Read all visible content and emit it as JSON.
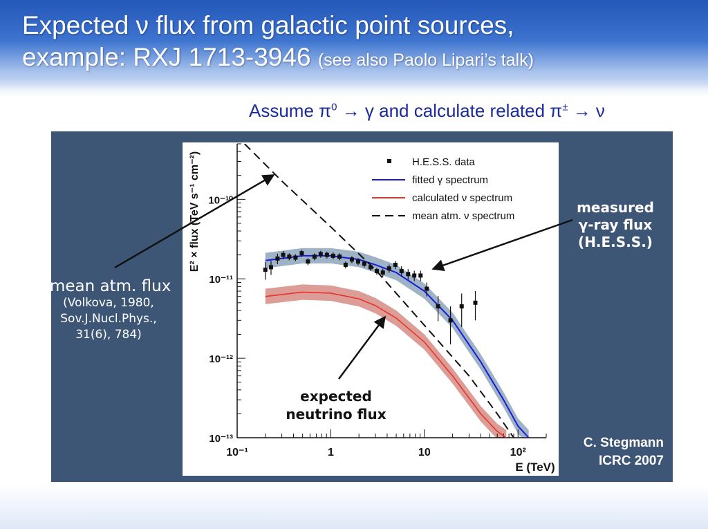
{
  "slide": {
    "title_line1": "Expected ν flux from galactic point sources,",
    "title_line2": "example: RXJ 1713-3946",
    "title_note": "(see also Paolo Lipari’s talk)",
    "subtitle_part1": "Assume π",
    "subtitle_sup1": "0",
    "subtitle_part2": " → γ and calculate related π",
    "subtitle_sup2": "±",
    "subtitle_part3": " → ν",
    "credit_line1": "C. Stegmann",
    "credit_line2": "ICRC 2007"
  },
  "annotations": {
    "mean_title": "mean atm. flux",
    "mean_ref1": "(Volkova, 1980,",
    "mean_ref2": "Sov.J.Nucl.Phys.,",
    "mean_ref3": "31(6), 784)",
    "measured1": "measured",
    "measured2": "γ-ray flux",
    "measured3": "(H.E.S.S.)",
    "expected1": "expected",
    "expected2": "neutrino flux"
  },
  "colors": {
    "panel": "#3d5676",
    "gamma_line": "#1a1ad6",
    "gamma_band": "#9fb3c7",
    "nu_line": "#e8322a",
    "nu_band": "#d9928c",
    "atm_line": "#111111"
  },
  "chart_data": {
    "type": "line",
    "xlabel": "E (TeV)",
    "ylabel": "E² × flux (TeV s⁻¹ cm⁻²)",
    "xscale": "log",
    "yscale": "log",
    "xlim": [
      0.1,
      200
    ],
    "ylim": [
      1e-13,
      5e-10
    ],
    "x_tick_labels": [
      "10⁻¹",
      "1",
      "10",
      "10²"
    ],
    "y_tick_labels": [
      "10⁻¹³",
      "10⁻¹²",
      "10⁻¹¹",
      "10⁻¹⁰"
    ],
    "legend_position": "top-right",
    "legend": [
      {
        "label": "H.E.S.S. data",
        "style": "marker"
      },
      {
        "label": "fitted γ spectrum",
        "style": "blue-line"
      },
      {
        "label": "calculated ν spectrum",
        "style": "red-line"
      },
      {
        "label": "mean atm. ν spectrum",
        "style": "black-dashed"
      }
    ],
    "series": [
      {
        "name": "fitted γ spectrum",
        "x": [
          0.2,
          0.5,
          1,
          2,
          3,
          5,
          10,
          20,
          40,
          70,
          100,
          130
        ],
        "y": [
          1.7e-11,
          1.95e-11,
          1.95e-11,
          1.75e-11,
          1.5e-11,
          1.2e-11,
          7e-12,
          3e-12,
          9e-13,
          3e-13,
          1.4e-13,
          1e-13
        ],
        "band_low_factor": 0.8,
        "band_high_factor": 1.25
      },
      {
        "name": "calculated ν spectrum",
        "x": [
          0.2,
          0.5,
          1,
          2,
          3,
          5,
          10,
          20,
          40,
          60,
          75
        ],
        "y": [
          6e-12,
          6.8e-12,
          6.6e-12,
          5.6e-12,
          4.6e-12,
          3.2e-12,
          1.6e-12,
          6e-13,
          2e-13,
          1.2e-13,
          1e-13
        ],
        "band_low_factor": 0.8,
        "band_high_factor": 1.25
      },
      {
        "name": "mean atm. ν spectrum",
        "x": [
          0.12,
          0.3,
          1,
          3,
          10,
          30,
          60,
          90
        ],
        "y": [
          5e-10,
          1.7e-10,
          4.5e-11,
          1.3e-11,
          2.6e-12,
          6e-13,
          2e-13,
          1e-13
        ]
      },
      {
        "name": "H.E.S.S. data",
        "x": [
          0.2,
          0.23,
          0.27,
          0.31,
          0.36,
          0.42,
          0.49,
          0.57,
          0.67,
          0.78,
          0.91,
          1.06,
          1.24,
          1.44,
          1.68,
          1.96,
          2.28,
          2.66,
          3.1,
          3.6,
          4.2,
          4.9,
          5.7,
          6.7,
          7.8,
          9.1,
          10.6,
          14,
          19,
          25,
          35
        ],
        "y": [
          1.3e-11,
          1.4e-11,
          1.8e-11,
          2e-11,
          1.9e-11,
          1.85e-11,
          2.1e-11,
          1.65e-11,
          1.9e-11,
          2.05e-11,
          2e-11,
          1.95e-11,
          1.9e-11,
          1.5e-11,
          1.75e-11,
          1.65e-11,
          1.55e-11,
          1.4e-11,
          1.25e-11,
          1.2e-11,
          1.35e-11,
          1.5e-11,
          1.25e-11,
          1.15e-11,
          1.1e-11,
          1.1e-11,
          7.5e-12,
          4.5e-12,
          3e-12,
          4.5e-12,
          5e-12
        ],
        "err": [
          0.25,
          0.2,
          0.15,
          0.12,
          0.1,
          0.1,
          0.1,
          0.1,
          0.1,
          0.1,
          0.1,
          0.1,
          0.1,
          0.1,
          0.1,
          0.1,
          0.1,
          0.1,
          0.1,
          0.12,
          0.12,
          0.12,
          0.15,
          0.15,
          0.15,
          0.15,
          0.2,
          0.35,
          0.5,
          0.45,
          0.4
        ]
      }
    ]
  }
}
